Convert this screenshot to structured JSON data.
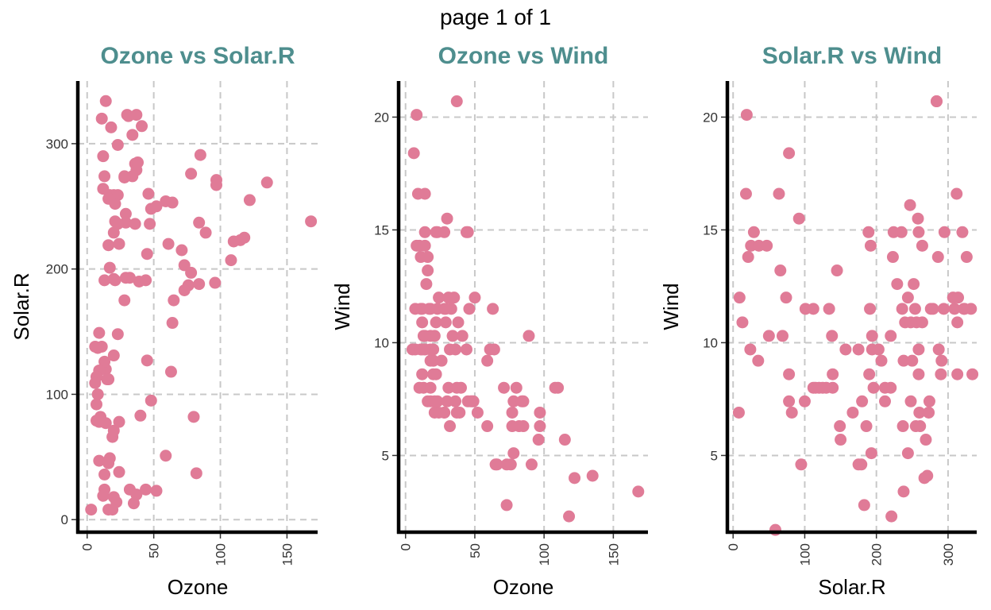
{
  "header": {
    "page_label": "page 1 of 1"
  },
  "colors": {
    "point": "#e07b97",
    "title": "#4e8e8e",
    "grid": "#c8c8c8",
    "axis": "#000000"
  },
  "chart_data": [
    {
      "type": "scatter",
      "title": "Ozone vs Solar.R",
      "xlabel": "Ozone",
      "ylabel": "Solar.R",
      "xlim": [
        -7,
        173
      ],
      "ylim": [
        -10,
        350
      ],
      "xticks": [
        0,
        50,
        100,
        150
      ],
      "yticks": [
        0,
        100,
        200,
        300
      ],
      "grid": true,
      "x": [
        14,
        30,
        41,
        31,
        23,
        18,
        20,
        17,
        18,
        36,
        34,
        37,
        28,
        23,
        21,
        29,
        29,
        21,
        16,
        20,
        23,
        16,
        13,
        12,
        28,
        36,
        46,
        39,
        32,
        34,
        37,
        48,
        29,
        44,
        47,
        52,
        24,
        38,
        59,
        28,
        64,
        65,
        71,
        73,
        78,
        78,
        76,
        84,
        85,
        89,
        97,
        97,
        61,
        73,
        64,
        84,
        96,
        108,
        115,
        118,
        122,
        135,
        168,
        110,
        12,
        13,
        17,
        20,
        45,
        21,
        11,
        9,
        8,
        11,
        20,
        23,
        14,
        16,
        13,
        6,
        8,
        7,
        9,
        9,
        14,
        10,
        7,
        19,
        20,
        3,
        13,
        17,
        9,
        16,
        32,
        24,
        13,
        12,
        20,
        22,
        37,
        35,
        44,
        52,
        59,
        48,
        80,
        82,
        40,
        63,
        45,
        7,
        15,
        6,
        16,
        19,
        24
      ],
      "y": [
        334,
        323,
        314,
        322,
        299,
        313,
        259,
        259,
        256,
        284,
        274,
        279,
        273,
        259,
        252,
        244,
        237,
        238,
        256,
        229,
        236,
        219,
        191,
        264,
        175,
        236,
        260,
        190,
        193,
        307,
        323,
        248,
        193,
        191,
        236,
        250,
        220,
        285,
        254,
        274,
        253,
        175,
        215,
        203,
        276,
        197,
        187,
        237,
        291,
        229,
        271,
        267,
        220,
        183,
        157,
        188,
        189,
        207,
        223,
        225,
        255,
        269,
        238,
        222,
        290,
        274,
        201,
        192,
        212,
        191,
        320,
        149,
        137,
        138,
        131,
        148,
        120,
        112,
        126,
        138,
        100,
        92,
        119,
        78,
        77,
        82,
        79,
        66,
        71,
        8,
        36,
        49,
        47,
        45,
        24,
        38,
        24,
        19,
        18,
        14,
        20,
        13,
        24,
        23,
        51,
        95,
        82,
        37,
        83,
        118,
        127,
        114,
        112,
        109,
        8,
        8,
        78
      ]
    },
    {
      "type": "scatter",
      "title": "Ozone vs Wind",
      "xlabel": "Ozone",
      "ylabel": "Wind",
      "xlim": [
        -5,
        175
      ],
      "ylim": [
        1.6,
        21.6
      ],
      "xticks": [
        0,
        50,
        100,
        150
      ],
      "yticks": [
        5,
        10,
        15,
        20
      ],
      "grid": true,
      "x": [
        8,
        37,
        6,
        10,
        14,
        14,
        11,
        22,
        23,
        30,
        28,
        44,
        8,
        9,
        14,
        16,
        5,
        11,
        12,
        15,
        18,
        12,
        24,
        13,
        17,
        14,
        18,
        21,
        12,
        18,
        7,
        23,
        28,
        29,
        31,
        33,
        38,
        16,
        20,
        22,
        32,
        34,
        18,
        36,
        40,
        31,
        20,
        13,
        16,
        23,
        21,
        28,
        37,
        45,
        32,
        24,
        18,
        11,
        20,
        26,
        7,
        35,
        29,
        22,
        12,
        14,
        20,
        46,
        50,
        44,
        41,
        37,
        30,
        28,
        21,
        10,
        18,
        14,
        59,
        63,
        64,
        71,
        78,
        73,
        78,
        77,
        85,
        89,
        97,
        96,
        97,
        91,
        84,
        82,
        76,
        77,
        80,
        85,
        108,
        110,
        115,
        118,
        122,
        135,
        168,
        73,
        66,
        65,
        59,
        61,
        49,
        47,
        36,
        39,
        45,
        52,
        48
      ],
      "y": [
        20.1,
        20.7,
        18.4,
        14.3,
        14.3,
        14.9,
        13.8,
        14.9,
        14.9,
        15.5,
        14.9,
        14.9,
        14.3,
        16.6,
        16.6,
        13.8,
        9.7,
        11.5,
        11.5,
        12.6,
        11.5,
        10.9,
        12.0,
        10.3,
        11.5,
        9.7,
        10.3,
        10.3,
        9.7,
        9.2,
        9.7,
        11.5,
        11.5,
        10.9,
        12.0,
        11.5,
        10.9,
        13.2,
        9.2,
        8.6,
        9.7,
        10.3,
        8.0,
        9.7,
        8.0,
        8.0,
        8.6,
        8.0,
        7.4,
        7.4,
        6.9,
        6.9,
        6.9,
        7.4,
        6.3,
        6.9,
        7.4,
        9.7,
        9.2,
        9.2,
        11.5,
        12.0,
        11.5,
        10.9,
        8.6,
        10.3,
        9.7,
        11.5,
        12.0,
        9.7,
        10.3,
        8.0,
        7.4,
        6.9,
        7.4,
        8.0,
        9.7,
        9.7,
        9.2,
        11.5,
        9.7,
        8.0,
        5.1,
        4.6,
        7.4,
        6.9,
        6.3,
        10.3,
        6.9,
        5.7,
        6.3,
        4.6,
        7.4,
        6.3,
        4.6,
        6.3,
        8.0,
        7.4,
        8.0,
        8.0,
        5.7,
        2.3,
        4.0,
        4.1,
        3.4,
        2.8,
        4.6,
        4.6,
        6.3,
        9.7,
        7.4,
        7.4,
        7.4,
        6.9,
        14.9,
        6.9,
        7.4
      ]
    },
    {
      "type": "scatter",
      "title": "Solar.R vs Wind",
      "xlabel": "Solar.R",
      "ylabel": "Wind",
      "xlim": [
        -8,
        340
      ],
      "ylim": [
        1.6,
        21.6
      ],
      "xticks": [
        0,
        100,
        200,
        300
      ],
      "yticks": [
        5,
        10,
        15,
        20
      ],
      "grid": true,
      "x": [
        19,
        284,
        78,
        18,
        64,
        29,
        25,
        36,
        47,
        21,
        92,
        9,
        13,
        35,
        50,
        59,
        8,
        24,
        66,
        69,
        78,
        82,
        74,
        78,
        95,
        100,
        101,
        112,
        112,
        115,
        120,
        125,
        130,
        134,
        138,
        139,
        139,
        145,
        149,
        150,
        157,
        167,
        175,
        180,
        183,
        186,
        189,
        190,
        191,
        192,
        193,
        194,
        196,
        203,
        207,
        212,
        212,
        220,
        223,
        224,
        229,
        235,
        236,
        237,
        238,
        240,
        244,
        247,
        248,
        250,
        252,
        254,
        255,
        256,
        258,
        259,
        259,
        260,
        261,
        264,
        267,
        269,
        271,
        273,
        274,
        276,
        279,
        284,
        286,
        287,
        290,
        291,
        294,
        295,
        307,
        309,
        312,
        313,
        314,
        320,
        322,
        323,
        326,
        332,
        334,
        238,
        244,
        175,
        194,
        220,
        259,
        264,
        179,
        221,
        248,
        313
      ],
      "y": [
        20.1,
        20.7,
        18.4,
        16.6,
        16.6,
        14.9,
        14.3,
        14.3,
        14.3,
        13.8,
        15.5,
        12.0,
        10.9,
        9.2,
        10.3,
        1.7,
        6.9,
        9.7,
        13.2,
        10.3,
        7.4,
        6.9,
        12.0,
        8.6,
        4.6,
        7.4,
        11.5,
        11.5,
        8.0,
        8.0,
        8.0,
        8.0,
        8.0,
        11.5,
        10.3,
        8.6,
        8.0,
        13.2,
        6.3,
        5.7,
        9.7,
        6.9,
        4.6,
        7.4,
        2.8,
        6.3,
        14.9,
        8.6,
        11.5,
        14.3,
        5.1,
        9.7,
        8.0,
        9.7,
        9.2,
        8.0,
        7.4,
        10.3,
        13.8,
        14.9,
        12.6,
        14.9,
        11.5,
        6.3,
        9.2,
        10.9,
        12.0,
        16.1,
        10.9,
        9.2,
        12.6,
        11.5,
        6.3,
        10.9,
        15.5,
        14.9,
        9.7,
        6.9,
        6.3,
        14.3,
        4.0,
        5.7,
        4.1,
        6.9,
        7.4,
        11.5,
        11.5,
        20.7,
        13.8,
        9.7,
        8.6,
        9.2,
        11.5,
        14.9,
        12.0,
        11.5,
        16.6,
        10.9,
        12.0,
        14.9,
        11.5,
        11.5,
        13.8,
        11.5,
        8.6,
        3.4,
        5.1,
        9.7,
        10.3,
        8.0,
        8.6,
        10.9,
        4.6,
        2.3,
        7.4,
        8.6
      ]
    }
  ]
}
